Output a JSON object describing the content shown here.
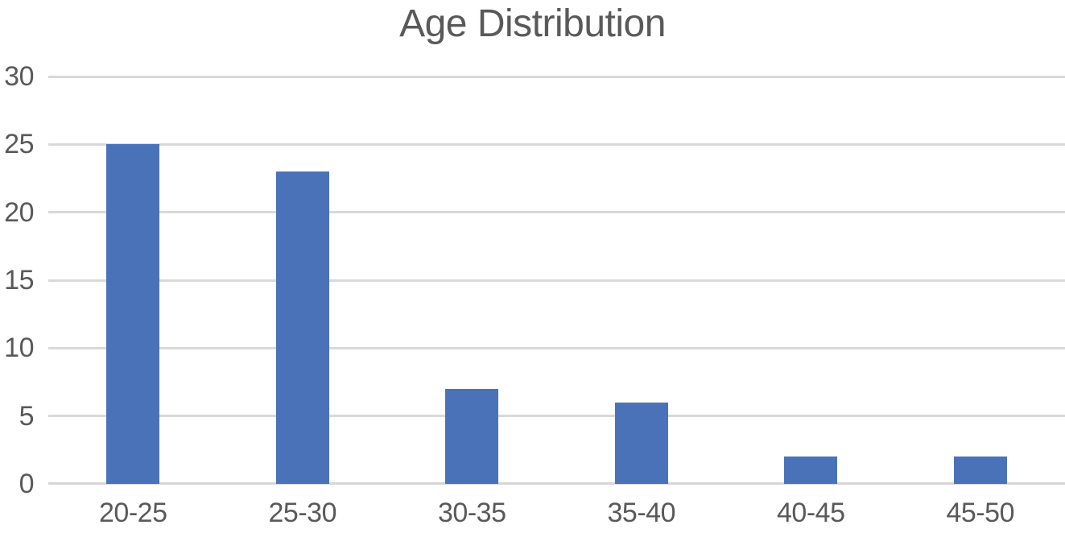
{
  "chart_data": {
    "type": "bar",
    "title": "Age Distribution",
    "categories": [
      "20-25",
      "25-30",
      "30-35",
      "35-40",
      "40-45",
      "45-50"
    ],
    "values": [
      25,
      23,
      7,
      6,
      2,
      2
    ],
    "xlabel": "",
    "ylabel": "",
    "ylim": [
      0,
      30
    ],
    "y_ticks": [
      0,
      5,
      10,
      15,
      20,
      25,
      30
    ],
    "grid": true,
    "legend": false,
    "colors": {
      "bar": "#4a72b8",
      "gridline": "#d9d9d9",
      "axis_line": "#d6d6d6",
      "text": "#595959",
      "background": "#ffffff"
    }
  }
}
